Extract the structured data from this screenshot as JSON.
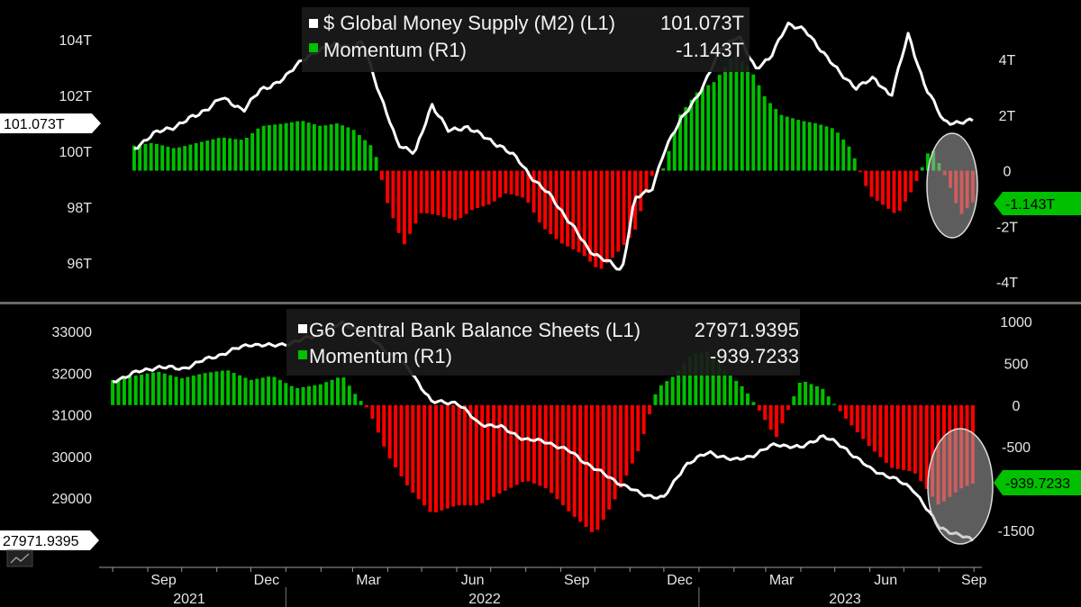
{
  "chart_data": [
    {
      "type": "line",
      "title": "$ Global Money Supply (M2) (L1)",
      "left_axis": {
        "ticks": [
          "104T",
          "102T",
          "100T",
          "98T",
          "96T"
        ],
        "tick_values": [
          104,
          102,
          100,
          98,
          96
        ]
      },
      "right_axis": {
        "ticks": [
          "4T",
          "2T",
          "0",
          "-2T",
          "-4T"
        ],
        "tick_values": [
          4,
          2,
          0,
          -2,
          -4
        ]
      },
      "series": [
        {
          "name": "$ Global Money Supply (M2) (L1)",
          "last_value": "101.073T",
          "color": "#ffffff",
          "x": [
            "2021-08-20",
            "2021-09-05",
            "2021-09-25",
            "2021-10-15",
            "2021-11-05",
            "2021-11-25",
            "2021-12-10",
            "2021-12-31",
            "2022-01-15",
            "2022-02-01",
            "2022-02-15",
            "2022-03-01",
            "2022-03-10",
            "2022-03-25",
            "2022-04-10",
            "2022-04-25",
            "2022-05-10",
            "2022-05-25",
            "2022-06-10",
            "2022-06-25",
            "2022-07-10",
            "2022-07-25",
            "2022-08-10",
            "2022-08-25",
            "2022-09-10",
            "2022-09-25",
            "2022-10-10",
            "2022-10-25",
            "2022-11-05",
            "2022-11-20",
            "2022-12-01",
            "2022-12-20",
            "2023-01-05",
            "2023-01-20",
            "2023-02-05",
            "2023-02-20",
            "2023-03-05",
            "2023-03-20",
            "2023-04-05",
            "2023-04-20",
            "2023-05-05",
            "2023-05-20",
            "2023-06-05",
            "2023-06-20",
            "2023-07-05",
            "2023-07-20",
            "2023-08-05",
            "2023-08-20",
            "2023-08-31"
          ],
          "values": [
            100.1,
            100.6,
            100.9,
            101.3,
            101.9,
            101.5,
            102.2,
            102.6,
            103.3,
            103.6,
            103.9,
            103.6,
            104.0,
            102.0,
            100.3,
            99.9,
            101.7,
            100.7,
            100.9,
            100.5,
            100.2,
            99.7,
            98.9,
            98.3,
            97.4,
            96.5,
            96.1,
            95.7,
            98.3,
            98.6,
            100.0,
            101.4,
            102.3,
            103.7,
            104.1,
            103.0,
            103.3,
            104.6,
            104.3,
            103.6,
            102.8,
            102.3,
            102.6,
            102.0,
            104.2,
            102.3,
            101.1,
            101.0,
            101.1
          ]
        },
        {
          "name": "Momentum (R1)",
          "last_value": "-1.143T",
          "color": "#00c000",
          "negative_color": "#ff0000",
          "x": [
            "2021-08-20",
            "2021-09-05",
            "2021-09-25",
            "2021-10-15",
            "2021-11-05",
            "2021-11-25",
            "2021-12-10",
            "2021-12-31",
            "2022-01-15",
            "2022-02-01",
            "2022-02-15",
            "2022-03-01",
            "2022-03-20",
            "2022-04-01",
            "2022-04-15",
            "2022-05-01",
            "2022-05-15",
            "2022-06-01",
            "2022-06-15",
            "2022-07-01",
            "2022-07-15",
            "2022-08-01",
            "2022-08-15",
            "2022-09-01",
            "2022-09-20",
            "2022-10-05",
            "2022-10-20",
            "2022-11-05",
            "2022-11-20",
            "2022-12-01",
            "2022-12-15",
            "2023-01-01",
            "2023-01-15",
            "2023-02-01",
            "2023-02-15",
            "2023-03-01",
            "2023-03-15",
            "2023-04-01",
            "2023-04-15",
            "2023-05-01",
            "2023-05-15",
            "2023-06-01",
            "2023-06-15",
            "2023-06-25",
            "2023-07-10",
            "2023-07-25",
            "2023-08-10",
            "2023-08-20",
            "2023-08-31"
          ],
          "values": [
            0.9,
            1.0,
            0.8,
            1.0,
            1.2,
            1.1,
            1.6,
            1.7,
            1.8,
            1.6,
            1.7,
            1.5,
            0.8,
            -1.2,
            -2.7,
            -1.5,
            -1.6,
            -1.8,
            -1.4,
            -1.2,
            -0.8,
            -1.0,
            -2.0,
            -2.6,
            -3.0,
            -3.6,
            -3.0,
            -2.2,
            -0.2,
            0.1,
            2.0,
            2.9,
            3.2,
            4.2,
            3.7,
            2.6,
            2.0,
            1.8,
            1.7,
            1.5,
            0.8,
            -0.9,
            -1.3,
            -1.6,
            -0.6,
            0.9,
            -0.5,
            -1.6,
            -1.143
          ]
        }
      ]
    },
    {
      "type": "line",
      "title": "G6 Central Bank Balance Sheets (L1)",
      "left_axis": {
        "ticks": [
          "33000",
          "32000",
          "31000",
          "30000",
          "29000"
        ],
        "tick_values": [
          33000,
          32000,
          31000,
          30000,
          29000
        ]
      },
      "right_axis": {
        "ticks": [
          "1000",
          "500",
          "0",
          "-500",
          "-1500"
        ],
        "tick_values": [
          1000,
          500,
          0,
          -500,
          -1500
        ]
      },
      "series": [
        {
          "name": "G6 Central Bank Balance Sheets (L1)",
          "last_value": "27971.9395",
          "color": "#ffffff",
          "x": [
            "2021-08-01",
            "2021-08-20",
            "2021-09-10",
            "2021-10-01",
            "2021-10-20",
            "2021-11-10",
            "2021-12-01",
            "2021-12-20",
            "2022-01-10",
            "2022-02-01",
            "2022-02-20",
            "2022-03-10",
            "2022-04-01",
            "2022-04-20",
            "2022-05-10",
            "2022-06-01",
            "2022-06-20",
            "2022-07-10",
            "2022-08-01",
            "2022-08-20",
            "2022-09-10",
            "2022-10-01",
            "2022-10-20",
            "2022-11-10",
            "2022-12-01",
            "2022-12-20",
            "2023-01-10",
            "2023-02-01",
            "2023-02-20",
            "2023-03-10",
            "2023-04-01",
            "2023-04-20",
            "2023-05-10",
            "2023-06-01",
            "2023-06-20",
            "2023-07-10",
            "2023-08-01",
            "2023-08-20",
            "2023-08-31"
          ],
          "values": [
            31800,
            32000,
            32150,
            32100,
            32300,
            32500,
            32700,
            32650,
            32750,
            32950,
            33200,
            33000,
            32500,
            32100,
            31300,
            31300,
            30800,
            30700,
            30400,
            30350,
            30100,
            29700,
            29400,
            29100,
            29000,
            29800,
            30100,
            29900,
            30050,
            30300,
            30200,
            30500,
            30200,
            29700,
            29500,
            29200,
            28300,
            28100,
            27971.9395
          ]
        },
        {
          "name": "Momentum (R1)",
          "last_value": "-939.7233",
          "color": "#00c000",
          "negative_color": "#ff0000",
          "x": [
            "2021-08-01",
            "2021-08-20",
            "2021-09-10",
            "2021-10-01",
            "2021-10-20",
            "2021-11-10",
            "2021-12-01",
            "2021-12-20",
            "2022-01-10",
            "2022-02-01",
            "2022-02-20",
            "2022-03-05",
            "2022-03-15",
            "2022-04-01",
            "2022-04-20",
            "2022-05-10",
            "2022-06-01",
            "2022-06-20",
            "2022-07-10",
            "2022-08-01",
            "2022-08-20",
            "2022-09-10",
            "2022-10-01",
            "2022-10-20",
            "2022-11-10",
            "2022-11-25",
            "2022-12-10",
            "2022-12-25",
            "2023-01-10",
            "2023-01-25",
            "2023-02-10",
            "2023-02-25",
            "2023-03-10",
            "2023-04-01",
            "2023-04-20",
            "2023-05-10",
            "2023-06-01",
            "2023-06-20",
            "2023-07-10",
            "2023-08-01",
            "2023-08-20",
            "2023-08-31"
          ],
          "values": [
            300,
            350,
            400,
            320,
            380,
            420,
            300,
            350,
            200,
            250,
            350,
            100,
            -50,
            -600,
            -1000,
            -1300,
            -1200,
            -1200,
            -1050,
            -900,
            -1000,
            -1300,
            -1550,
            -1100,
            -500,
            200,
            350,
            600,
            650,
            400,
            200,
            -100,
            -400,
            300,
            200,
            -150,
            -500,
            -750,
            -800,
            -1200,
            -1000,
            -939.7233
          ]
        }
      ]
    }
  ],
  "x_axis": {
    "month_labels": [
      "Sep",
      "Dec",
      "Mar",
      "Jun",
      "Sep",
      "Dec",
      "Mar",
      "Jun",
      "Sep"
    ],
    "year_labels": [
      "2021",
      "2022",
      "2023"
    ]
  },
  "colors": {
    "background": "#000000",
    "positive_bar": "#00c000",
    "negative_bar": "#ff0000",
    "line": "#ffffff",
    "legend_bg": "#1a1a1a",
    "highlight_ellipse": "#9a9a9a"
  }
}
